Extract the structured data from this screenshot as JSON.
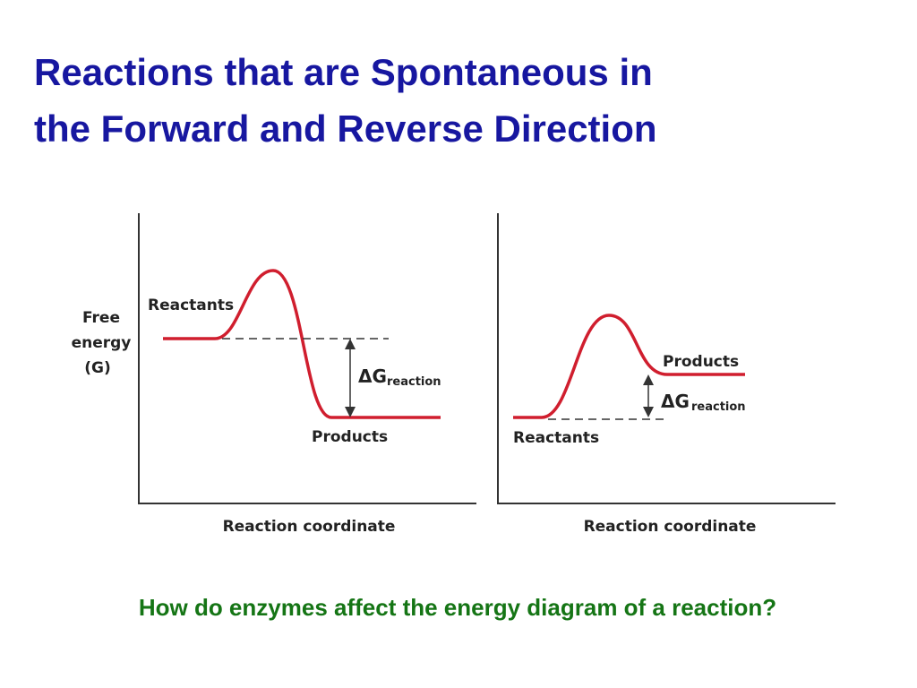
{
  "title": [
    "Reactions that are Spontaneous in",
    "the Forward and Reverse Direction"
  ],
  "y_axis_label": [
    "Free",
    "energy",
    "(G)"
  ],
  "panels": [
    {
      "start_label": "Reactants",
      "end_label": "Products",
      "delta_symbol": "ΔG",
      "delta_subscript": "reaction",
      "x_axis_label": "Reaction coordinate"
    },
    {
      "start_label": "Reactants",
      "end_label": "Products",
      "delta_symbol": "ΔG",
      "delta_subscript": "reaction",
      "x_axis_label": "Reaction coordinate"
    }
  ],
  "question": "How do enzymes affect the energy diagram of a reaction?"
}
